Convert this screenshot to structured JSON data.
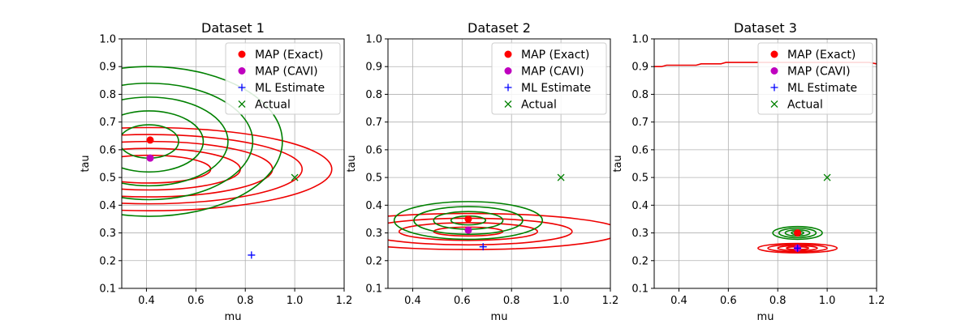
{
  "chart_data": [
    {
      "type": "contour",
      "title": "Dataset 1",
      "xlabel": "mu",
      "ylabel": "tau",
      "xlim": [
        0.3,
        1.2
      ],
      "ylim": [
        0.1,
        1.0
      ],
      "xticks": [
        "0.4",
        "0.6",
        "0.8",
        "1.0",
        "1.2"
      ],
      "yticks": [
        "0.1",
        "0.2",
        "0.3",
        "0.4",
        "0.5",
        "0.6",
        "0.7",
        "0.8",
        "0.9",
        "1.0"
      ],
      "grid": true,
      "legend_position": "top-right",
      "legend": [
        "MAP (Exact)",
        "MAP (CAVI)",
        "ML Estimate",
        "Actual"
      ],
      "points": {
        "map_exact": [
          0.415,
          0.635
        ],
        "map_cavi": [
          0.415,
          0.57
        ],
        "ml_estimate": [
          0.825,
          0.22
        ],
        "actual": [
          1.0,
          0.5
        ]
      },
      "contours_exact": [
        {
          "cx": 0.41,
          "cy": 0.53,
          "rx": 0.74,
          "ry": 0.15
        },
        {
          "cx": 0.41,
          "cy": 0.53,
          "rx": 0.62,
          "ry": 0.125
        },
        {
          "cx": 0.41,
          "cy": 0.53,
          "rx": 0.5,
          "ry": 0.1
        },
        {
          "cx": 0.41,
          "cy": 0.53,
          "rx": 0.37,
          "ry": 0.075
        },
        {
          "cx": 0.41,
          "cy": 0.53,
          "rx": 0.25,
          "ry": 0.05
        }
      ],
      "contours_cavi": [
        {
          "cx": 0.41,
          "cy": 0.63,
          "rx": 0.54,
          "ry": 0.27
        },
        {
          "cx": 0.41,
          "cy": 0.63,
          "rx": 0.42,
          "ry": 0.21
        },
        {
          "cx": 0.41,
          "cy": 0.63,
          "rx": 0.32,
          "ry": 0.16
        },
        {
          "cx": 0.41,
          "cy": 0.63,
          "rx": 0.22,
          "ry": 0.11
        },
        {
          "cx": 0.41,
          "cy": 0.63,
          "rx": 0.12,
          "ry": 0.06
        }
      ],
      "truncated_exact_level": null
    },
    {
      "type": "contour",
      "title": "Dataset 2",
      "xlabel": "mu",
      "ylabel": "tau",
      "xlim": [
        0.3,
        1.2
      ],
      "ylim": [
        0.1,
        1.0
      ],
      "xticks": [
        "0.4",
        "0.6",
        "0.8",
        "1.0",
        "1.2"
      ],
      "yticks": [
        "0.1",
        "0.2",
        "0.3",
        "0.4",
        "0.5",
        "0.6",
        "0.7",
        "0.8",
        "0.9",
        "1.0"
      ],
      "grid": true,
      "legend_position": "top-right",
      "legend": [
        "MAP (Exact)",
        "MAP (CAVI)",
        "ML Estimate",
        "Actual"
      ],
      "points": {
        "map_exact": [
          0.625,
          0.35
        ],
        "map_cavi": [
          0.625,
          0.31
        ],
        "ml_estimate": [
          0.685,
          0.25
        ],
        "actual": [
          1.0,
          0.5
        ]
      },
      "contours_exact": [
        {
          "cx": 0.625,
          "cy": 0.305,
          "rx": 0.62,
          "ry": 0.065
        },
        {
          "cx": 0.625,
          "cy": 0.305,
          "rx": 0.42,
          "ry": 0.048
        },
        {
          "cx": 0.625,
          "cy": 0.305,
          "rx": 0.28,
          "ry": 0.032
        },
        {
          "cx": 0.625,
          "cy": 0.305,
          "rx": 0.14,
          "ry": 0.016
        }
      ],
      "contours_cavi": [
        {
          "cx": 0.625,
          "cy": 0.345,
          "rx": 0.3,
          "ry": 0.068
        },
        {
          "cx": 0.625,
          "cy": 0.345,
          "rx": 0.22,
          "ry": 0.05
        },
        {
          "cx": 0.625,
          "cy": 0.345,
          "rx": 0.14,
          "ry": 0.032
        },
        {
          "cx": 0.625,
          "cy": 0.345,
          "rx": 0.07,
          "ry": 0.016
        }
      ],
      "truncated_exact_level": null
    },
    {
      "type": "contour",
      "title": "Dataset 3",
      "xlabel": "mu",
      "ylabel": "tau",
      "xlim": [
        0.3,
        1.2
      ],
      "ylim": [
        0.1,
        1.0
      ],
      "xticks": [
        "0.4",
        "0.6",
        "0.8",
        "1.0",
        "1.2"
      ],
      "yticks": [
        "0.1",
        "0.2",
        "0.3",
        "0.4",
        "0.5",
        "0.6",
        "0.7",
        "0.8",
        "0.9",
        "1.0"
      ],
      "grid": true,
      "legend_position": "top-right",
      "legend": [
        "MAP (Exact)",
        "MAP (CAVI)",
        "ML Estimate",
        "Actual"
      ],
      "points": {
        "map_exact": [
          0.88,
          0.3
        ],
        "map_cavi": [
          0.88,
          0.245
        ],
        "ml_estimate": [
          0.88,
          0.245
        ],
        "actual": [
          1.0,
          0.5
        ]
      },
      "contours_exact": [
        {
          "cx": 0.88,
          "cy": 0.245,
          "rx": 0.16,
          "ry": 0.017
        },
        {
          "cx": 0.88,
          "cy": 0.245,
          "rx": 0.12,
          "ry": 0.013
        },
        {
          "cx": 0.88,
          "cy": 0.245,
          "rx": 0.08,
          "ry": 0.009
        },
        {
          "cx": 0.88,
          "cy": 0.245,
          "rx": 0.045,
          "ry": 0.005
        }
      ],
      "contours_cavi": [
        {
          "cx": 0.88,
          "cy": 0.3,
          "rx": 0.1,
          "ry": 0.023
        },
        {
          "cx": 0.88,
          "cy": 0.3,
          "rx": 0.075,
          "ry": 0.017
        },
        {
          "cx": 0.88,
          "cy": 0.3,
          "rx": 0.05,
          "ry": 0.011
        },
        {
          "cx": 0.88,
          "cy": 0.3,
          "rx": 0.025,
          "ry": 0.006
        }
      ],
      "truncated_exact_level": [
        [
          0.3,
          0.9
        ],
        [
          0.33,
          0.9
        ],
        [
          0.35,
          0.905
        ],
        [
          0.47,
          0.905
        ],
        [
          0.49,
          0.91
        ],
        [
          0.57,
          0.91
        ],
        [
          0.59,
          0.915
        ],
        [
          1.17,
          0.915
        ],
        [
          1.2,
          0.91
        ]
      ]
    }
  ],
  "colors": {
    "exact": "#ee0000",
    "cavi": "#008000",
    "map_exact": "#ff0000",
    "map_cavi": "#bf00bf",
    "ml": "#0000ff",
    "actual": "#008000",
    "grid": "#b0b0b0"
  }
}
